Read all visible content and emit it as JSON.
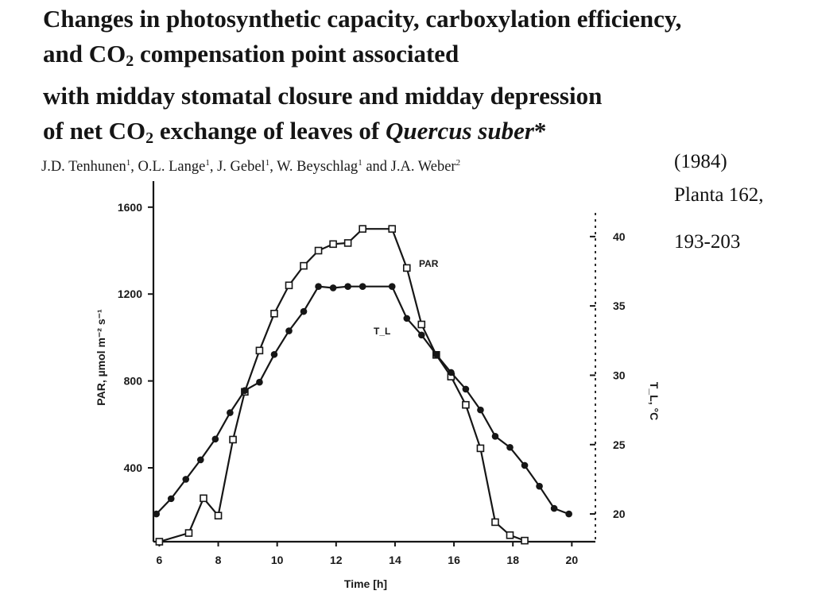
{
  "slide": {
    "title": {
      "line1": "Changes in photosynthetic capacity, carboxylation efficiency,",
      "line2_pre": "and CO",
      "line2_sub": "2",
      "line2_post": " compensation point associated",
      "line3": "with midday stomatal closure and midday depression",
      "line4_pre": "of net CO",
      "line4_sub": "2",
      "line4_mid": " exchange of leaves of ",
      "line4_species": "Quercus suber",
      "line4_post": "*"
    },
    "authors": [
      {
        "name": "J.D. Tenhunen",
        "sup": "1",
        "sep": ", "
      },
      {
        "name": "O.L. Lange",
        "sup": "1",
        "sep": ", "
      },
      {
        "name": "J. Gebel",
        "sup": "1",
        "sep": ", "
      },
      {
        "name": "W. Beyschlag",
        "sup": "1",
        "sep": " and "
      },
      {
        "name": "J.A. Weber",
        "sup": "2",
        "sep": ""
      }
    ],
    "citation": {
      "year": "(1984)",
      "journal": "Planta 162,",
      "pages": "193-203"
    }
  },
  "chart_data": {
    "type": "line",
    "title": "",
    "xlabel": "Time [h]",
    "ylabel": "PAR, µmol m⁻² s⁻¹",
    "y2label": "T_L, °C",
    "xlim": [
      5.8,
      20.8
    ],
    "ylim": [
      60,
      1720
    ],
    "y2lim": [
      18,
      44
    ],
    "x_ticks": [
      6,
      8,
      10,
      12,
      14,
      16,
      18,
      20
    ],
    "y_ticks": [
      400,
      800,
      1200,
      1600
    ],
    "y2_ticks": [
      20,
      25,
      30,
      35,
      40
    ],
    "grid": false,
    "legend": "inline labels",
    "series": [
      {
        "name": "PAR",
        "axis": "left",
        "marker": "open-square",
        "x": [
          6.0,
          7.0,
          7.5,
          8.0,
          8.5,
          8.9,
          9.4,
          9.9,
          10.4,
          10.9,
          11.4,
          11.9,
          12.4,
          12.9,
          13.9,
          14.4,
          14.9,
          15.4,
          15.9,
          16.4,
          16.9,
          17.4,
          17.9,
          18.4
        ],
        "values": [
          60,
          100,
          260,
          180,
          530,
          750,
          940,
          1110,
          1240,
          1330,
          1400,
          1430,
          1435,
          1500,
          1500,
          1320,
          1060,
          920,
          820,
          690,
          490,
          150,
          90,
          65
        ]
      },
      {
        "name": "T_L",
        "axis": "right",
        "marker": "filled-circle",
        "x": [
          5.9,
          6.4,
          6.9,
          7.4,
          7.9,
          8.4,
          8.9,
          9.4,
          9.9,
          10.4,
          10.9,
          11.4,
          11.9,
          12.4,
          12.9,
          13.9,
          14.4,
          14.9,
          15.4,
          15.9,
          16.4,
          16.9,
          17.4,
          17.9,
          18.4,
          18.9,
          19.4,
          19.9
        ],
        "values": [
          20.0,
          21.1,
          22.5,
          23.9,
          25.4,
          27.3,
          28.9,
          29.5,
          31.5,
          33.2,
          34.6,
          36.4,
          36.3,
          36.4,
          36.4,
          36.4,
          34.1,
          32.9,
          31.5,
          30.2,
          29.0,
          27.5,
          25.6,
          24.8,
          23.5,
          22.0,
          20.4,
          20.0
        ]
      }
    ],
    "annotations": [
      "PAR",
      "T_L"
    ]
  }
}
